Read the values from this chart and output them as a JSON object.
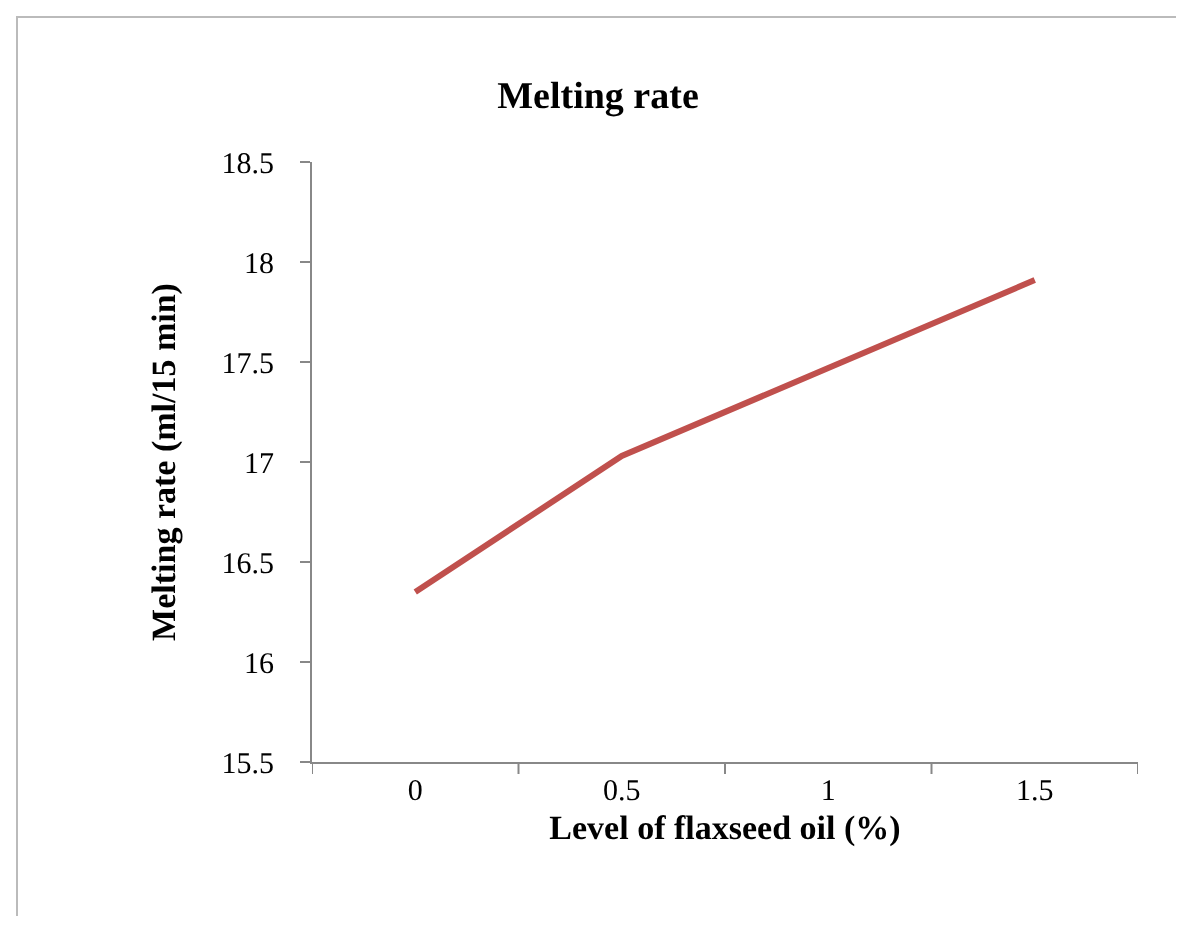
{
  "chart_data": {
    "type": "line",
    "title": "Melting rate",
    "xlabel": "Level of flaxseed oil (%)",
    "ylabel": "Melting rate (ml/15 min)",
    "categories": [
      "0",
      "0.5",
      "1",
      "1.5"
    ],
    "series": [
      {
        "color": "#c0504d",
        "values": [
          16.35,
          17.03,
          17.47,
          17.91
        ]
      }
    ],
    "ylim": [
      15.5,
      18.5
    ],
    "yticks": [
      15.5,
      16,
      16.5,
      17,
      17.5,
      18,
      18.5
    ],
    "grid": false,
    "marker": "none",
    "line_style": "solid"
  }
}
